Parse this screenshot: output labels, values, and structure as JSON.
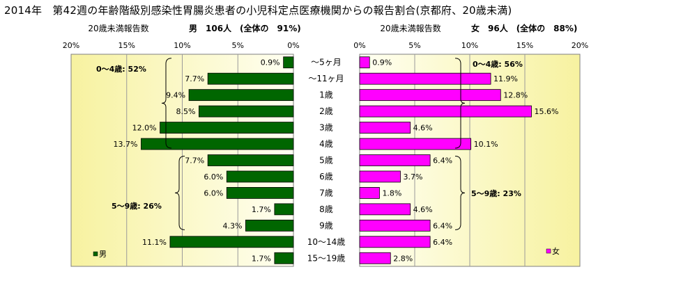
{
  "title": "2014年　第42週の年齢階級別感染性胃腸炎患者の小児科定点医療機関からの報告割合(京都府、20歳未満)",
  "colors": {
    "male_bar": "#006600",
    "female_bar": "#ff00ff",
    "plot_fill_light": "#fffff2",
    "plot_fill_dark": "#f7f2a0",
    "frame": "#7f7f7f"
  },
  "chart_data": [
    {
      "type": "bar",
      "orientation": "horizontal",
      "direction": "right-to-left",
      "panel_label": "20歳未満報告数",
      "summary": "男　106人　(全体の　91%)",
      "xlim": [
        0,
        20
      ],
      "ticks": [
        "20%",
        "15%",
        "10%",
        "5%",
        "0%"
      ],
      "categories": [
        "～5ヶ月",
        "～11ヶ月",
        "1歳",
        "2歳",
        "3歳",
        "4歳",
        "5歳",
        "6歳",
        "7歳",
        "8歳",
        "9歳",
        "10～14歳",
        "15～19歳"
      ],
      "values": [
        0.9,
        7.7,
        9.4,
        8.5,
        12.0,
        13.7,
        7.7,
        6.0,
        6.0,
        1.7,
        4.3,
        11.1,
        1.7
      ],
      "data_labels": [
        "0.9%",
        "7.7%",
        "9.4%",
        "8.5%",
        "12.0%",
        "13.7%",
        "7.7%",
        "6.0%",
        "6.0%",
        "1.7%",
        "4.3%",
        "11.1%",
        "1.7%"
      ],
      "legend": "男",
      "legend_position": "bottom-left",
      "grid": "vertical",
      "annotations": [
        {
          "text": "0～4歳: 52%",
          "from": 0,
          "to": 5
        },
        {
          "text": "5～9歳: 26%",
          "from": 6,
          "to": 10
        }
      ]
    },
    {
      "type": "bar",
      "orientation": "horizontal",
      "direction": "left-to-right",
      "panel_label": "20歳未満報告数",
      "summary": "女　96人　(全体の　88%)",
      "xlim": [
        0,
        20
      ],
      "ticks": [
        "0%",
        "5%",
        "10%",
        "15%",
        "20%"
      ],
      "categories": [
        "～5ヶ月",
        "～11ヶ月",
        "1歳",
        "2歳",
        "3歳",
        "4歳",
        "5歳",
        "6歳",
        "7歳",
        "8歳",
        "9歳",
        "10～14歳",
        "15～19歳"
      ],
      "values": [
        0.9,
        11.9,
        12.8,
        15.6,
        4.6,
        10.1,
        6.4,
        3.7,
        1.8,
        4.6,
        6.4,
        6.4,
        2.8
      ],
      "data_labels": [
        "0.9%",
        "11.9%",
        "12.8%",
        "15.6%",
        "4.6%",
        "10.1%",
        "6.4%",
        "3.7%",
        "1.8%",
        "4.6%",
        "6.4%",
        "6.4%",
        "2.8%"
      ],
      "legend": "女",
      "legend_position": "bottom-right",
      "grid": "vertical",
      "annotations": [
        {
          "text": "0～4歳: 56%",
          "from": 0,
          "to": 5
        },
        {
          "text": "5～9歳: 23%",
          "from": 6,
          "to": 10
        }
      ]
    }
  ]
}
